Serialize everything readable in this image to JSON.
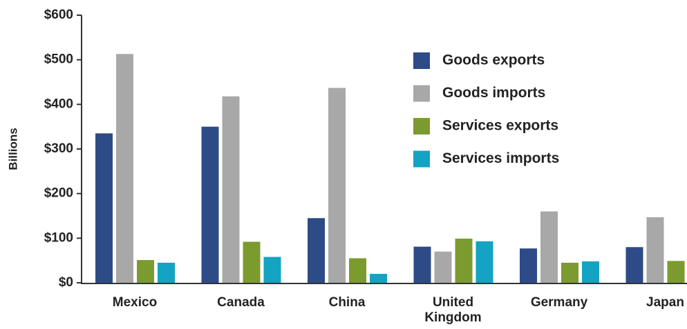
{
  "chart_data": {
    "type": "bar",
    "y_label": "Billions",
    "categories": [
      "Mexico",
      "Canada",
      "China",
      "United Kingdom",
      "Germany",
      "Japan"
    ],
    "series": [
      {
        "name": "Goods exports",
        "color": "#2d4b86",
        "values": [
          335,
          350,
          145,
          81,
          77,
          80
        ]
      },
      {
        "name": "Goods imports",
        "color": "#a8a8a8",
        "values": [
          513,
          418,
          437,
          70,
          160,
          147
        ]
      },
      {
        "name": "Services exports",
        "color": "#7b9b2f",
        "values": [
          51,
          92,
          55,
          99,
          45,
          49
        ]
      },
      {
        "name": "Services imports",
        "color": "#14a3c2",
        "values": [
          45,
          58,
          20,
          93,
          48,
          null
        ]
      }
    ],
    "ylim": [
      0,
      600
    ],
    "yticks": [
      {
        "value": 0,
        "label": "$0"
      },
      {
        "value": 100,
        "label": "$100"
      },
      {
        "value": 200,
        "label": "$200"
      },
      {
        "value": 300,
        "label": "$300"
      },
      {
        "value": 400,
        "label": "$400"
      },
      {
        "value": 500,
        "label": "$500"
      },
      {
        "value": 600,
        "label": "$600"
      }
    ],
    "legend": "upper center"
  }
}
